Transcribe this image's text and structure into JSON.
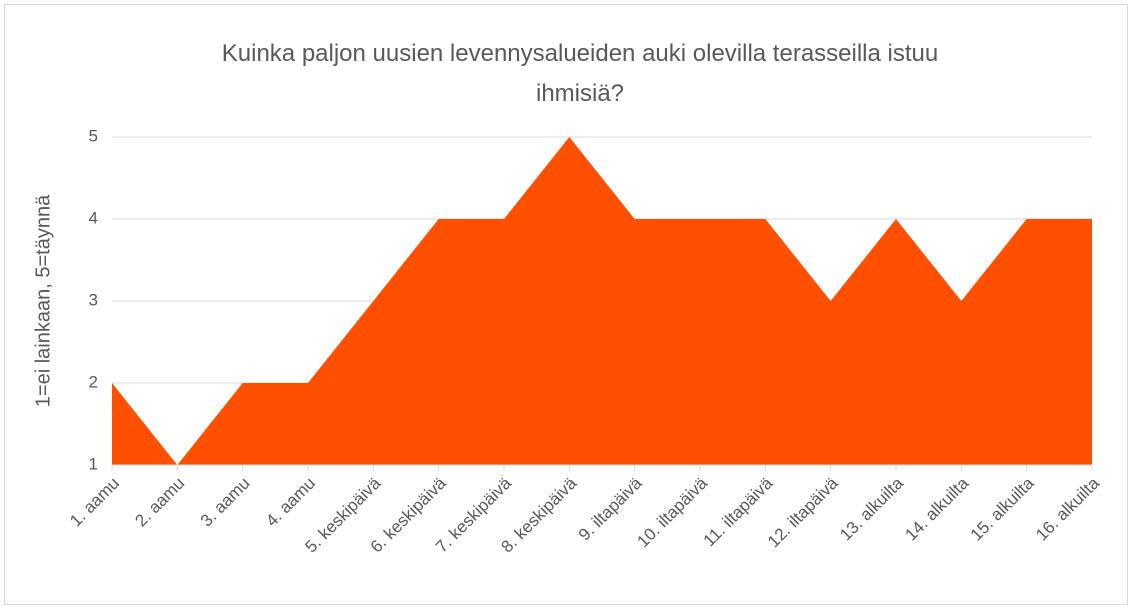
{
  "chart_data": {
    "type": "area",
    "title": "Kuinka paljon uusien levennysalueiden auki olevilla terasseilla istuu ihmisiä?",
    "y_label": "1=ei lainkaan, 5=täynnä",
    "categories": [
      "1. aamu",
      "2. aamu",
      "3. aamu",
      "4. aamu",
      "5. keskipäivä",
      "6. keskipäivä",
      "7. keskipäivä",
      "8. keskipäivä",
      "9. iltapäivä",
      "10. iltapäivä",
      "11. iltapäivä",
      "12. iltapäivä",
      "13. alkuilta",
      "14. alkuilta",
      "15. alkuilta",
      "16. alkuilta"
    ],
    "values": [
      2,
      1,
      2,
      2,
      3,
      4,
      4,
      5,
      4,
      4,
      4,
      3,
      4,
      3,
      4,
      4
    ],
    "color": "#fe5000",
    "ylim": [
      1,
      5
    ],
    "yticks": [
      1,
      2,
      3,
      4,
      5
    ],
    "grid": true
  }
}
